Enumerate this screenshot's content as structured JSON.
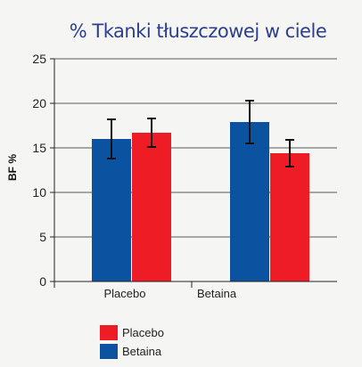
{
  "chart_data": {
    "type": "bar",
    "title": "% Tkanki tłuszczowej w ciele",
    "ylabel": "BF %",
    "xlabel": "",
    "ylim": [
      0,
      25
    ],
    "yticks": [
      "0",
      "5",
      "10",
      "15",
      "20",
      "25"
    ],
    "grid": true,
    "legend_position": "bottom-left",
    "categories": [
      "Placebo",
      "Betaina"
    ],
    "series": [
      {
        "name": "Betaina",
        "color": "#0b52a0",
        "values": [
          16.0,
          17.9
        ],
        "errors": [
          2.2,
          2.4
        ]
      },
      {
        "name": "Placebo",
        "color": "#ee1c25",
        "values": [
          16.7,
          14.4
        ],
        "errors": [
          1.6,
          1.5
        ]
      }
    ],
    "legend": [
      {
        "label": "Placebo",
        "color": "#ee1c25"
      },
      {
        "label": "Betaina",
        "color": "#0b52a0"
      }
    ]
  }
}
